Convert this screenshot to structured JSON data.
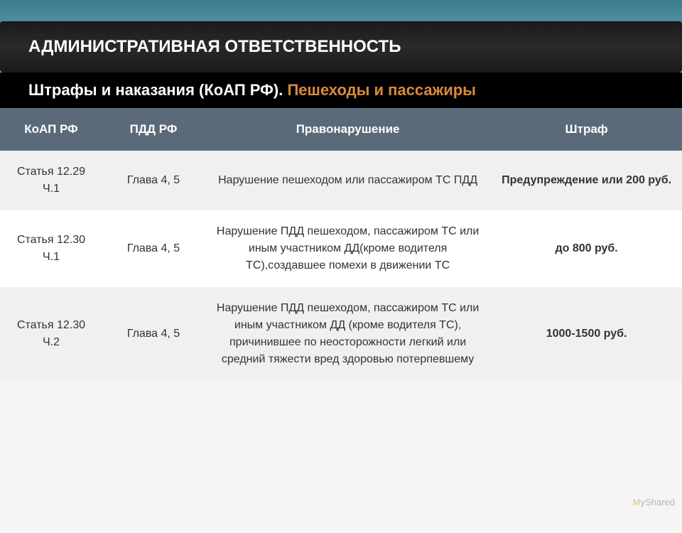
{
  "header": {
    "title": "АДМИНИСТРАТИВНАЯ ОТВЕТСТВЕННОСТЬ"
  },
  "subtitle": {
    "part1": "Штрафы и наказания (КоАП РФ). ",
    "part2": "Пешеходы и пассажиры"
  },
  "table": {
    "columns": [
      "КоАП РФ",
      "ПДД РФ",
      "Правонарушение",
      "Штраф"
    ],
    "rows": [
      {
        "koap": "Статья 12.29 Ч.1",
        "pdd": "Глава 4, 5",
        "violation": "Нарушение пешеходом или пассажиром ТС ПДД",
        "fine": "Предупреждение или 200 руб.",
        "fine_bold": true
      },
      {
        "koap": "Статья 12.30 Ч.1",
        "pdd": "Глава 4, 5",
        "violation": "Нарушение ПДД пешеходом, пассажиром ТС или иным участником ДД(кроме водителя ТС),создавшее помехи в движении ТС",
        "fine": "до 800 руб.",
        "fine_bold": true
      },
      {
        "koap": "Статья 12.30 Ч.2",
        "pdd": "Глава 4, 5",
        "violation": "Нарушение ПДД пешеходом, пассажиром ТС или иным участником ДД (кроме водителя ТС), причинившее по неосторожности легкий или средний тяжести вред здоровью потерпевшему",
        "fine": "1000-1500 руб.",
        "fine_bold": true
      }
    ]
  },
  "watermark": {
    "m": "M",
    "rest": "yShared"
  },
  "colors": {
    "header_bg": "#1a1a1a",
    "subtitle_bg": "#000000",
    "orange": "#d98a3a",
    "th_bg": "#5a6a78",
    "row_odd": "#f0f0f0",
    "row_even": "#ffffff"
  }
}
